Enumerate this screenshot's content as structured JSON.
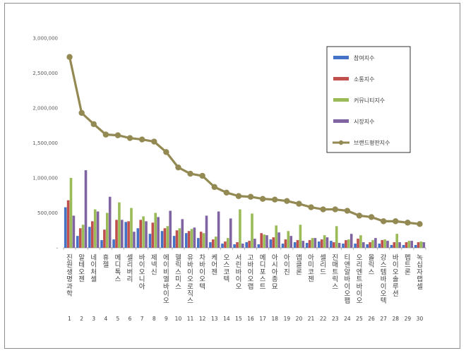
{
  "chart_data": {
    "type": "bar",
    "title": "",
    "xlabel": "",
    "ylabel": "",
    "ylim": [
      0,
      3000000
    ],
    "y_ticks": [
      "-",
      "500,000",
      "1,000,000",
      "1,500,000",
      "2,000,000",
      "2,500,000",
      "3,000,000"
    ],
    "grid": false,
    "legend_position": "top-right",
    "indices": [
      "1",
      "2",
      "3",
      "4",
      "5",
      "6",
      "7",
      "8",
      "9",
      "10",
      "11",
      "12",
      "13",
      "14",
      "15",
      "16",
      "17",
      "18",
      "19",
      "20",
      "21",
      "22",
      "23",
      "24",
      "25",
      "26",
      "27",
      "28",
      "29",
      "30"
    ],
    "categories": [
      "진원생명과학",
      "알테오젠",
      "네이처셀",
      "휴젤",
      "메디톡스",
      "셀리버리",
      "바이오니아",
      "제넥신",
      "에이비엘바이오",
      "헬릭스미스",
      "유바이오로직스",
      "차바이오텍",
      "케어젠",
      "오스코텍",
      "서린바이오",
      "고바이오랩",
      "메디포스트",
      "아시아종묘",
      "아이진",
      "앱클론",
      "아미코젠",
      "셀리드",
      "진매트릭스",
      "티앤알바이오팹",
      "오리엔트바이오",
      "올릭스",
      "강스템바이오텍",
      "바이오솔루션",
      "펩트론",
      "녹십자랩셀"
    ],
    "series": [
      {
        "name": "참여지수",
        "type": "bar",
        "color": "#4472c4",
        "values": [
          580000,
          170000,
          300000,
          110000,
          120000,
          370000,
          280000,
          200000,
          240000,
          170000,
          210000,
          140000,
          80000,
          60000,
          50000,
          80000,
          50000,
          120000,
          60000,
          80000,
          70000,
          90000,
          100000,
          60000,
          60000,
          50000,
          60000,
          40000,
          40000,
          40000
        ]
      },
      {
        "name": "소통지수",
        "type": "bar",
        "color": "#c0504d",
        "values": [
          680000,
          280000,
          380000,
          260000,
          400000,
          380000,
          400000,
          360000,
          280000,
          250000,
          240000,
          230000,
          120000,
          90000,
          80000,
          100000,
          210000,
          150000,
          120000,
          110000,
          110000,
          120000,
          80000,
          110000,
          130000,
          80000,
          110000,
          80000,
          80000,
          80000
        ]
      },
      {
        "name": "커뮤니티지수",
        "type": "bar",
        "color": "#9bbb59",
        "values": [
          1000000,
          330000,
          550000,
          500000,
          650000,
          570000,
          450000,
          500000,
          310000,
          280000,
          270000,
          210000,
          160000,
          140000,
          550000,
          490000,
          190000,
          320000,
          240000,
          330000,
          140000,
          180000,
          310000,
          120000,
          180000,
          110000,
          120000,
          200000,
          100000,
          90000
        ]
      },
      {
        "name": "시장지수",
        "type": "bar",
        "color": "#8064a2",
        "values": [
          460000,
          1110000,
          520000,
          730000,
          400000,
          230000,
          380000,
          440000,
          530000,
          410000,
          290000,
          460000,
          520000,
          420000,
          60000,
          130000,
          180000,
          220000,
          170000,
          100000,
          140000,
          150000,
          70000,
          200000,
          80000,
          140000,
          100000,
          80000,
          100000,
          80000
        ]
      },
      {
        "name": "브랜드평판지수",
        "type": "line",
        "color": "#938953",
        "values": [
          2730000,
          1930000,
          1770000,
          1620000,
          1610000,
          1570000,
          1550000,
          1520000,
          1370000,
          1150000,
          1060000,
          1030000,
          870000,
          790000,
          740000,
          730000,
          700000,
          690000,
          670000,
          630000,
          580000,
          550000,
          550000,
          530000,
          460000,
          440000,
          380000,
          380000,
          360000,
          340000
        ]
      }
    ]
  }
}
